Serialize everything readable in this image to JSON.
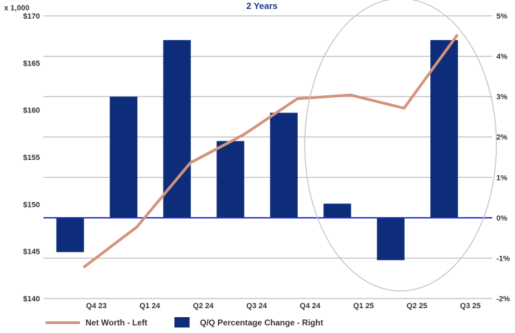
{
  "chart_data": {
    "type": "bar",
    "title": "2 Years",
    "left_unit_label": "x 1,000",
    "categories": [
      "Q4 23",
      "Q1 24",
      "Q2 24",
      "Q3 24",
      "Q4 24",
      "Q1 25",
      "Q2 25",
      "Q3 25"
    ],
    "y_left": {
      "ticks": [
        "$140",
        "$145",
        "$150",
        "$155",
        "$160",
        "$165",
        "$170"
      ],
      "min": 140,
      "max": 170,
      "step": 5
    },
    "y_right": {
      "ticks": [
        "-2%",
        "-1%",
        "0%",
        "1%",
        "2%",
        "3%",
        "4%",
        "5%"
      ],
      "min": -2,
      "max": 5,
      "step": 1
    },
    "bar_series": {
      "name": "Q/Q  Percentage Change - Right",
      "axis": "right",
      "color": "#0d2d7a",
      "x": [
        0,
        1,
        2,
        3,
        4,
        5,
        6,
        7
      ],
      "values": [
        -0.85,
        3.0,
        4.4,
        1.9,
        2.6,
        0.35,
        -1.05,
        4.4
      ]
    },
    "line_series": {
      "name": "Net Worth - Left",
      "axis": "left",
      "color": "#d4937a",
      "x": [
        0.25,
        1.25,
        2.25,
        3.25,
        4.25,
        5.25,
        6.25,
        7.25
      ],
      "values": [
        143.3,
        147.6,
        154.4,
        157.4,
        161.2,
        161.6,
        160.2,
        168.0
      ]
    },
    "zero_line_color": "#1f2fd0",
    "grid": true,
    "legend_position": "bottom-left",
    "annotation": "ellipse highlighting Q1 25 - Q3 25"
  }
}
